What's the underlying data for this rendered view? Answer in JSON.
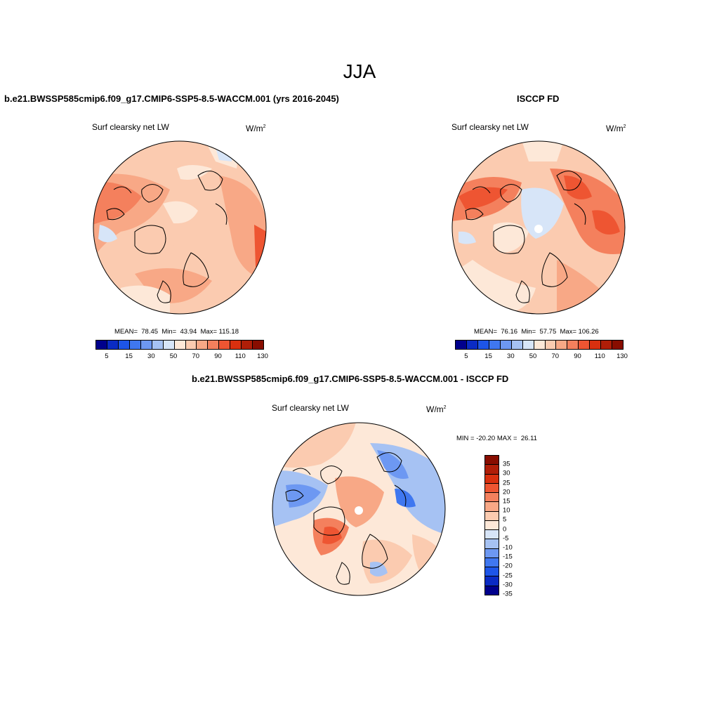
{
  "figure": {
    "season": "JJA"
  },
  "panels": [
    {
      "title": "b.e21.BWSSP585cmip6.f09_g17.CMIP6-SSP5-8.5-WACCM.001 (yrs 2016-2045)",
      "variable": "Surf clearsky net LW",
      "units": "W/m",
      "units_sup": "2",
      "stats": "MEAN=  78.45  Min=  43.94  Max= 115.18",
      "mean": 78.45,
      "min": 43.94,
      "max": 115.18,
      "colorbar_ticks": [
        "5",
        "15",
        "30",
        "50",
        "70",
        "90",
        "110",
        "130"
      ]
    },
    {
      "title": "ISCCP FD",
      "variable": "Surf clearsky net LW",
      "units": "W/m",
      "units_sup": "2",
      "stats": "MEAN=  76.16  Min=  57.75  Max= 106.26",
      "mean": 76.16,
      "min": 57.75,
      "max": 106.26,
      "colorbar_ticks": [
        "5",
        "15",
        "30",
        "50",
        "70",
        "90",
        "110",
        "130"
      ]
    },
    {
      "title": "b.e21.BWSSP585cmip6.f09_g17.CMIP6-SSP5-8.5-WACCM.001 - ISCCP FD",
      "variable": "Surf clearsky net LW",
      "units": "W/m",
      "units_sup": "2",
      "stats": "MIN = -20.20 MAX =  26.11",
      "min": -20.2,
      "max": 26.11,
      "colorbar_ticks": [
        "35",
        "30",
        "25",
        "20",
        "15",
        "10",
        "5",
        "0",
        "-5",
        "-10",
        "-15",
        "-20",
        "-25",
        "-30",
        "-35"
      ]
    }
  ],
  "colors": {
    "abs_scale": [
      "#00008c",
      "#0a2bc4",
      "#1d55e8",
      "#3f77f0",
      "#6d98f2",
      "#a6c2f3",
      "#d7e5f8",
      "#fde8d8",
      "#fbcbb0",
      "#f8a886",
      "#f4805d",
      "#ee5532",
      "#d9300f",
      "#b01e08",
      "#880d00"
    ],
    "diff_scale": [
      "#880d00",
      "#b01e08",
      "#d9300f",
      "#ee5532",
      "#f4805d",
      "#f8a886",
      "#fbcbb0",
      "#fde8d8",
      "#d7e5f8",
      "#a6c2f3",
      "#6d98f2",
      "#3f77f0",
      "#1d55e8",
      "#0a2bc4",
      "#00008c"
    ]
  }
}
